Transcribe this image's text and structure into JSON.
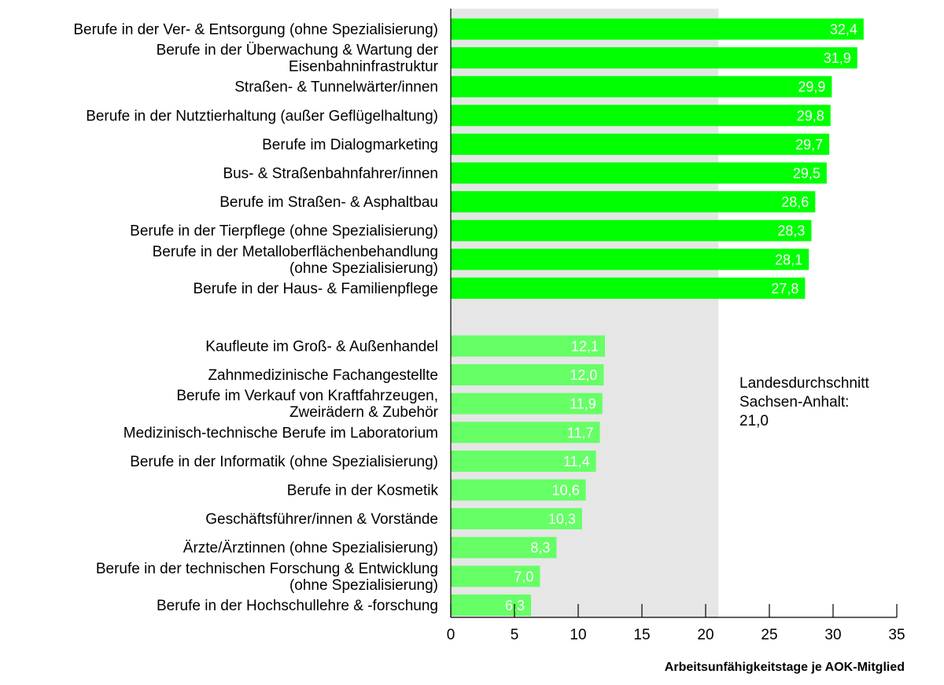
{
  "chart_data": {
    "type": "bar",
    "orientation": "horizontal",
    "xlabel": "Arbeitsunfähigkeitstage je AOK-Mitglied",
    "xlim": [
      0,
      35
    ],
    "xticks": [
      "0",
      "5",
      "10",
      "15",
      "20",
      "25",
      "30",
      "35"
    ],
    "reference": {
      "value": 21.0,
      "label_lines": [
        "Landesdurchschnitt",
        "Sachsen-Anhalt:",
        "21,0"
      ]
    },
    "colors": {
      "top_group": "#00ff00",
      "bottom_group": "#66ff66",
      "reference_band": "#e6e6e6"
    },
    "groups": [
      {
        "bars": [
          {
            "label": [
              "Berufe in der Ver- & Entsorgung (ohne Spezialisierung)"
            ],
            "value": 32.4,
            "display": "32,4"
          },
          {
            "label": [
              "Berufe in der Überwachung & Wartung der",
              "Eisenbahninfrastruktur"
            ],
            "value": 31.9,
            "display": "31,9"
          },
          {
            "label": [
              "Straßen- & Tunnelwärter/innen"
            ],
            "value": 29.9,
            "display": "29,9"
          },
          {
            "label": [
              "Berufe in der Nutztierhaltung (außer Geflügelhaltung)"
            ],
            "value": 29.8,
            "display": "29,8"
          },
          {
            "label": [
              "Berufe im Dialogmarketing"
            ],
            "value": 29.7,
            "display": "29,7"
          },
          {
            "label": [
              "Bus- & Straßenbahnfahrer/innen"
            ],
            "value": 29.5,
            "display": "29,5"
          },
          {
            "label": [
              "Berufe im Straßen- & Asphaltbau"
            ],
            "value": 28.6,
            "display": "28,6"
          },
          {
            "label": [
              "Berufe in der Tierpflege (ohne Spezialisierung)"
            ],
            "value": 28.3,
            "display": "28,3"
          },
          {
            "label": [
              "Berufe in der Metalloberflächenbehandlung",
              "(ohne Spezialisierung)"
            ],
            "value": 28.1,
            "display": "28,1"
          },
          {
            "label": [
              "Berufe in der Haus- & Familienpflege"
            ],
            "value": 27.8,
            "display": "27,8"
          }
        ]
      },
      {
        "bars": [
          {
            "label": [
              "Kaufleute im Groß- & Außenhandel"
            ],
            "value": 12.1,
            "display": "12,1"
          },
          {
            "label": [
              "Zahnmedizinische Fachangestellte"
            ],
            "value": 12.0,
            "display": "12,0"
          },
          {
            "label": [
              "Berufe im Verkauf von Kraftfahrzeugen,",
              "Zweirädern & Zubehör"
            ],
            "value": 11.9,
            "display": "11,9"
          },
          {
            "label": [
              "Medizinisch-technische Berufe im Laboratorium"
            ],
            "value": 11.7,
            "display": "11,7"
          },
          {
            "label": [
              "Berufe in der Informatik (ohne Spezialisierung)"
            ],
            "value": 11.4,
            "display": "11,4"
          },
          {
            "label": [
              "Berufe in der Kosmetik"
            ],
            "value": 10.6,
            "display": "10,6"
          },
          {
            "label": [
              "Geschäftsführer/innen & Vorstände"
            ],
            "value": 10.3,
            "display": "10,3"
          },
          {
            "label": [
              "Ärzte/Ärztinnen (ohne Spezialisierung)"
            ],
            "value": 8.3,
            "display": "8,3"
          },
          {
            "label": [
              "Berufe in der technischen Forschung & Entwicklung",
              "(ohne Spezialisierung)"
            ],
            "value": 7.0,
            "display": "7,0"
          },
          {
            "label": [
              "Berufe in der Hochschullehre & -forschung"
            ],
            "value": 6.3,
            "display": "6,3"
          }
        ]
      }
    ]
  }
}
